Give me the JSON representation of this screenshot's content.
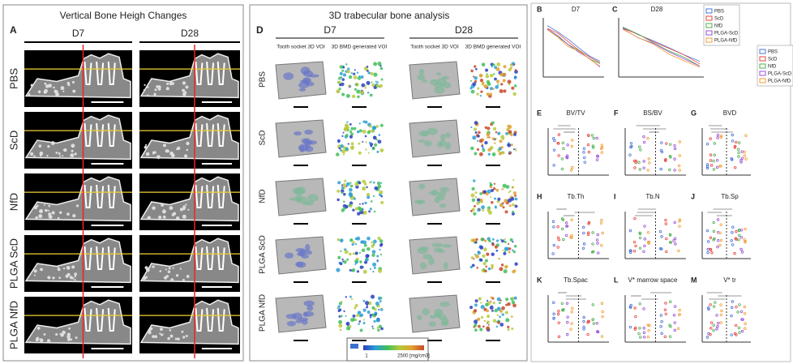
{
  "panel_a": {
    "letter": "A",
    "title": "Vertical Bone Heigh Changes",
    "columns": [
      "D7",
      "D28"
    ],
    "rows": [
      "PBS",
      "ScD",
      "NfD",
      "PLGA ScD",
      "PLGA NfD"
    ]
  },
  "panel_d": {
    "letter": "D",
    "title": "3D trabecular bone analysis",
    "columns": [
      {
        "label": "D7",
        "sub": [
          "Tooth socket 3D VOI",
          "3D BMD generated VOI"
        ]
      },
      {
        "label": "D28",
        "sub": [
          "Tooth socket 3D VOI",
          "3D BMD generated VOI"
        ]
      }
    ],
    "rows": [
      "PBS",
      "ScD",
      "NfD",
      "PLGA ScD",
      "PLGA NfD"
    ],
    "colorbar": {
      "min_label": "1",
      "max_label": "2500 [mg/cm3]"
    }
  },
  "panel_b": {
    "letter": "B",
    "title": "D7"
  },
  "panel_c": {
    "letter": "C",
    "title": "D28"
  },
  "legend": [
    "PBS",
    "ScD",
    "NfD",
    "PLGA-ScD",
    "PLGA-NfD"
  ],
  "metric_panels": [
    {
      "letter": "E",
      "title": "BV/TV"
    },
    {
      "letter": "F",
      "title": "BS/BV"
    },
    {
      "letter": "G",
      "title": "BVD"
    },
    {
      "letter": "H",
      "title": "Tb.Th"
    },
    {
      "letter": "I",
      "title": "Tb.N"
    },
    {
      "letter": "J",
      "title": "Tb.Sp"
    },
    {
      "letter": "K",
      "title": "Tb.Spac"
    },
    {
      "letter": "L",
      "title": "V* marrow space"
    },
    {
      "letter": "M",
      "title": "V* tr"
    }
  ]
}
